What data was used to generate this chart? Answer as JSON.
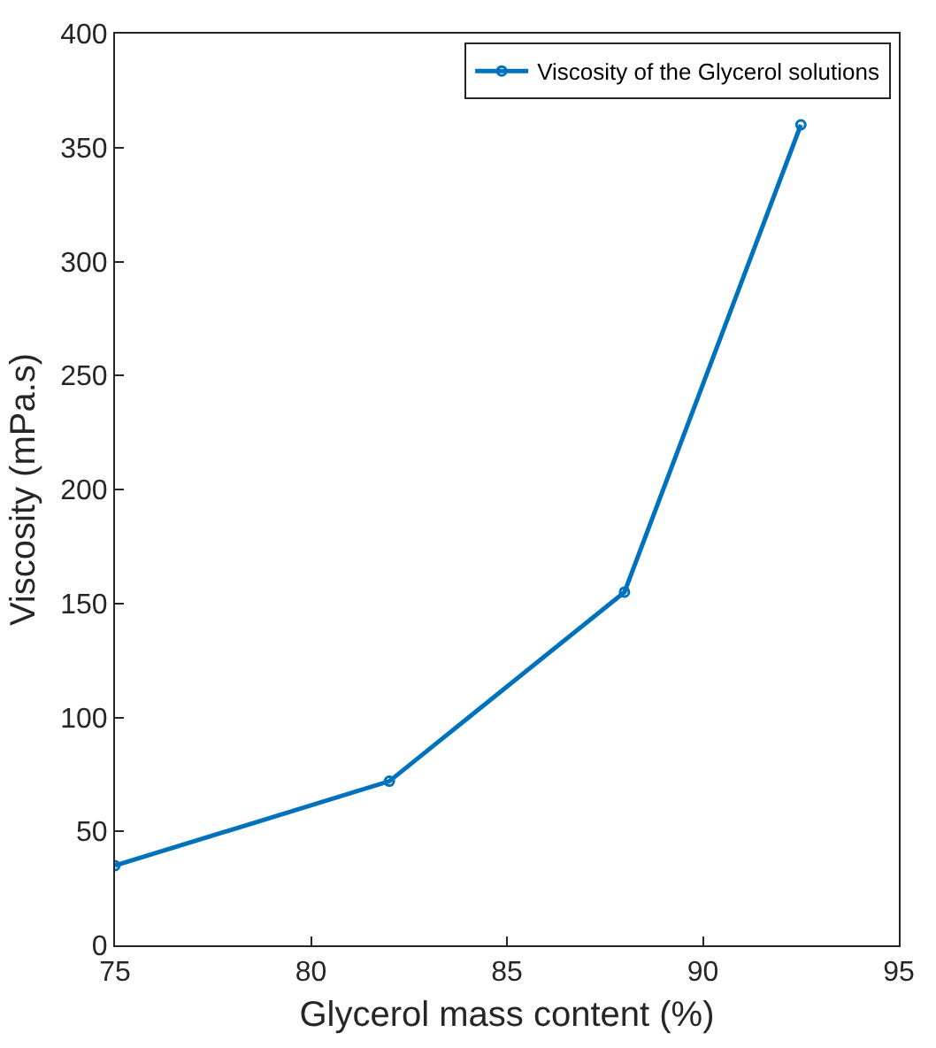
{
  "chart_data": {
    "type": "line",
    "xlabel": "Glycerol mass content (%)",
    "ylabel": "Viscosity (mPa.s)",
    "x": [
      75,
      82,
      88,
      92.5
    ],
    "series": [
      {
        "name": "Viscosity of the Glycerol solutions",
        "color": "#0072bd",
        "values": [
          35,
          72,
          155,
          360
        ]
      }
    ],
    "xlim": [
      75,
      95
    ],
    "xticks": [
      75,
      80,
      85,
      90,
      95
    ],
    "ylim": [
      0,
      400
    ],
    "yticks": [
      0,
      50,
      100,
      150,
      200,
      250,
      300,
      350,
      400
    ],
    "legend": "top right",
    "marker": "circle",
    "line_style": "solid"
  }
}
